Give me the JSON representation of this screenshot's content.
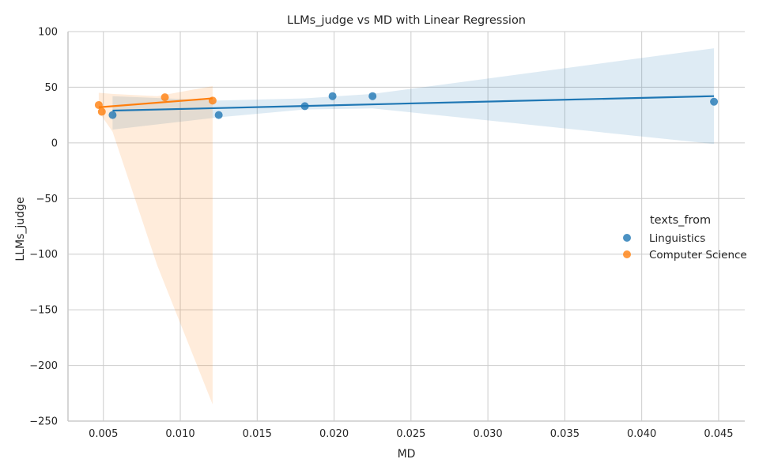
{
  "chart_data": {
    "type": "scatter",
    "title": "LLMs_judge vs MD with Linear Regression",
    "xlabel": "MD",
    "ylabel": "LLMs_judge",
    "xlim": [
      0.0027,
      0.0467
    ],
    "ylim": [
      -250,
      100
    ],
    "xticks": [
      0.005,
      0.01,
      0.015,
      0.02,
      0.025,
      0.03,
      0.035,
      0.04,
      0.045
    ],
    "xtick_labels": [
      "0.005",
      "0.010",
      "0.015",
      "0.020",
      "0.025",
      "0.030",
      "0.035",
      "0.040",
      "0.045"
    ],
    "yticks": [
      -250,
      -200,
      -150,
      -100,
      -50,
      0,
      50,
      100
    ],
    "ytick_labels": [
      "−250",
      "−200",
      "−150",
      "−100",
      "−50",
      "0",
      "50",
      "100"
    ],
    "grid": true,
    "legend": {
      "title": "texts_from",
      "placement": "center-right"
    },
    "series": [
      {
        "name": "Linguistics",
        "color": "#1f77b4",
        "points": [
          [
            0.0056,
            25
          ],
          [
            0.0125,
            25
          ],
          [
            0.0181,
            33
          ],
          [
            0.0199,
            42
          ],
          [
            0.0225,
            42
          ],
          [
            0.0447,
            37
          ]
        ],
        "regression": {
          "x": [
            0.0056,
            0.0447
          ],
          "y": [
            29,
            42
          ]
        },
        "ci": {
          "x": [
            0.0056,
            0.0125,
            0.0181,
            0.0225,
            0.0447
          ],
          "lower": [
            12,
            23,
            30,
            31,
            -1
          ],
          "upper": [
            42,
            38,
            40,
            44,
            85
          ]
        }
      },
      {
        "name": "Computer Science",
        "color": "#ff7f0e",
        "points": [
          [
            0.0047,
            34
          ],
          [
            0.0049,
            28
          ],
          [
            0.009,
            41
          ],
          [
            0.0121,
            38
          ]
        ],
        "regression": {
          "x": [
            0.0047,
            0.0121
          ],
          "y": [
            32,
            40
          ]
        },
        "ci": {
          "x": [
            0.0047,
            0.0056,
            0.0085,
            0.0121
          ],
          "lower": [
            28,
            10,
            -110,
            -235
          ],
          "upper": [
            45,
            44,
            42,
            51
          ]
        }
      }
    ]
  }
}
